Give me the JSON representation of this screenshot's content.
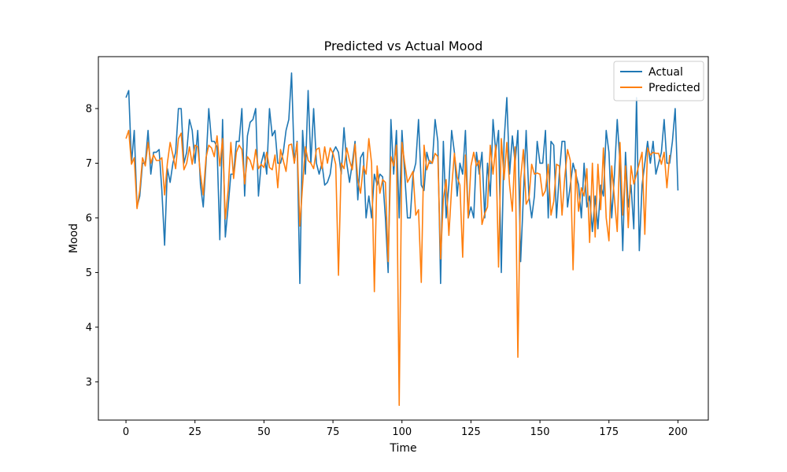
{
  "chart_data": {
    "type": "line",
    "title": "Predicted vs Actual Mood",
    "xlabel": "Time",
    "ylabel": "Mood",
    "xlim": [
      -10,
      211
    ],
    "ylim": [
      2.3,
      8.95
    ],
    "xticks": [
      0,
      25,
      50,
      75,
      100,
      125,
      150,
      175,
      200
    ],
    "yticks": [
      3,
      4,
      5,
      6,
      7,
      8
    ],
    "legend_position": "top-right",
    "series": [
      {
        "name": "Actual",
        "color": "#1f77b4",
        "values": [
          8.2,
          8.33,
          7.0,
          7.6,
          6.2,
          6.4,
          7.0,
          7.0,
          7.6,
          6.8,
          7.2,
          7.2,
          7.25,
          6.5,
          5.5,
          6.9,
          6.65,
          7.0,
          7.2,
          8.0,
          8.0,
          7.0,
          7.2,
          7.8,
          7.6,
          7.0,
          7.6,
          6.6,
          6.2,
          7.0,
          8.0,
          7.4,
          7.4,
          7.3,
          5.6,
          7.8,
          5.65,
          6.2,
          6.8,
          6.8,
          7.4,
          7.4,
          8.0,
          6.4,
          7.5,
          7.75,
          7.8,
          8.0,
          6.4,
          7.0,
          7.2,
          6.8,
          8.0,
          7.5,
          7.6,
          7.0,
          7.0,
          7.2,
          7.6,
          7.8,
          8.65,
          7.0,
          7.4,
          4.8,
          7.6,
          6.8,
          8.33,
          7.0,
          8.0,
          7.0,
          6.8,
          7.0,
          6.6,
          6.65,
          6.8,
          7.2,
          7.3,
          7.2,
          6.8,
          7.65,
          7.0,
          6.65,
          7.0,
          7.4,
          6.33,
          7.1,
          7.2,
          6.0,
          6.4,
          6.0,
          6.8,
          6.6,
          6.8,
          6.75,
          6.0,
          5.0,
          7.8,
          6.8,
          7.6,
          6.0,
          7.6,
          6.8,
          6.0,
          6.0,
          6.8,
          7.0,
          7.8,
          6.6,
          6.5,
          7.2,
          7.0,
          7.0,
          7.8,
          7.4,
          4.8,
          7.4,
          6.0,
          6.6,
          7.6,
          7.2,
          6.4,
          7.0,
          6.8,
          7.6,
          6.0,
          6.2,
          6.0,
          7.2,
          6.8,
          7.2,
          6.0,
          7.0,
          6.4,
          7.8,
          7.2,
          7.6,
          5.0,
          7.4,
          8.2,
          6.8,
          7.5,
          7.0,
          7.6,
          5.2,
          6.4,
          7.6,
          6.4,
          6.0,
          6.4,
          7.4,
          7.0,
          7.0,
          7.6,
          6.0,
          7.4,
          7.33,
          6.0,
          6.8,
          7.4,
          7.4,
          6.2,
          6.6,
          7.0,
          6.8,
          6.6,
          6.0,
          7.0,
          6.2,
          6.4,
          5.75,
          6.4,
          5.8,
          6.6,
          6.4,
          7.6,
          7.2,
          6.0,
          6.8,
          7.8,
          7.0,
          5.4,
          7.2,
          6.2,
          6.6,
          5.8,
          8.2,
          5.4,
          6.6,
          7.0,
          7.4,
          7.0,
          7.4,
          6.8,
          7.0,
          7.2,
          7.8,
          7.0,
          7.0,
          7.4,
          8.0,
          6.5
        ]
      },
      {
        "name": "Predicted",
        "color": "#ff7f0e",
        "values": [
          7.45,
          7.6,
          6.98,
          7.1,
          6.17,
          6.5,
          7.1,
          6.95,
          7.38,
          7.0,
          7.15,
          7.05,
          7.05,
          7.1,
          6.42,
          7.0,
          7.38,
          7.15,
          6.9,
          7.45,
          7.55,
          6.88,
          7.0,
          7.3,
          6.98,
          7.33,
          7.3,
          6.8,
          6.42,
          7.1,
          7.33,
          7.28,
          7.12,
          7.5,
          6.95,
          7.45,
          5.98,
          6.5,
          7.38,
          6.72,
          7.2,
          7.33,
          7.25,
          6.62,
          7.12,
          7.05,
          6.88,
          7.25,
          6.9,
          6.98,
          6.92,
          7.2,
          6.92,
          6.88,
          7.15,
          6.55,
          7.25,
          7.05,
          6.85,
          7.33,
          7.35,
          7.0,
          7.38,
          5.85,
          6.6,
          7.3,
          7.05,
          7.0,
          6.9,
          7.25,
          7.28,
          6.9,
          7.3,
          7.0,
          7.28,
          7.18,
          6.98,
          4.95,
          7.0,
          6.9,
          7.28,
          7.05,
          6.88,
          7.35,
          6.7,
          6.45,
          6.95,
          6.8,
          7.45,
          7.0,
          4.65,
          6.95,
          6.45,
          6.7,
          6.65,
          5.2,
          7.12,
          6.95,
          7.33,
          2.57,
          7.38,
          7.0,
          6.65,
          6.75,
          6.85,
          6.05,
          6.15,
          4.82,
          7.33,
          6.88,
          7.05,
          7.0,
          7.18,
          7.12,
          5.25,
          6.35,
          6.7,
          5.68,
          6.55,
          7.18,
          6.75,
          6.6,
          5.28,
          7.15,
          6.0,
          6.95,
          7.2,
          6.95,
          7.05,
          5.88,
          6.08,
          6.2,
          7.33,
          6.8,
          7.33,
          5.1,
          7.45,
          6.7,
          7.38,
          6.6,
          6.12,
          7.3,
          3.45,
          6.72,
          7.25,
          6.25,
          6.35,
          6.98,
          6.8,
          6.82,
          6.8,
          6.4,
          6.5,
          6.98,
          6.05,
          6.3,
          6.98,
          6.95,
          6.05,
          6.75,
          7.25,
          7.05,
          5.05,
          6.88,
          6.12,
          6.55,
          6.4,
          6.9,
          5.55,
          7.0,
          5.65,
          6.98,
          6.15,
          7.28,
          6.0,
          5.58,
          6.95,
          6.35,
          5.75,
          7.38,
          6.05,
          6.95,
          5.82,
          6.95,
          6.62,
          6.8,
          7.0,
          7.2,
          5.7,
          7.28,
          7.15,
          7.2,
          7.18,
          7.18,
          6.98,
          7.2,
          6.55,
          7.15
        ]
      }
    ]
  }
}
